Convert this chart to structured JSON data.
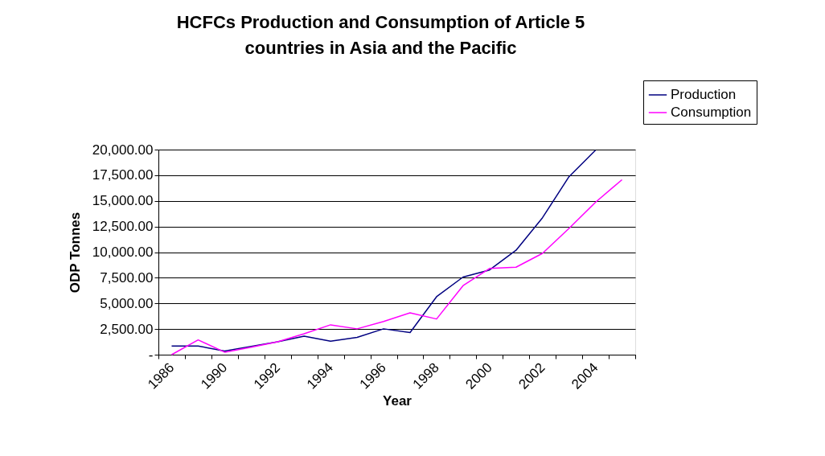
{
  "chart_data": {
    "type": "line",
    "title": "HCFCs Production and Consumption of Article 5 countries in Asia and the Pacific",
    "xlabel": "Year",
    "ylabel": "ODP Tonnes",
    "categories": [
      "1986",
      null,
      "1990",
      null,
      "1992",
      null,
      "1994",
      null,
      "1996",
      null,
      "1998",
      null,
      "2000",
      null,
      "2002",
      null,
      "2004",
      null
    ],
    "series": [
      {
        "name": "Production",
        "color": "#000080",
        "values": [
          840,
          840,
          360,
          800,
          1260,
          1800,
          1320,
          1680,
          2520,
          2160,
          5650,
          7570,
          8260,
          10180,
          13360,
          17360,
          19940,
          null
        ]
      },
      {
        "name": "Consumption",
        "color": "#ff00ff",
        "values": [
          0,
          1440,
          240,
          720,
          1260,
          2040,
          2910,
          2520,
          3240,
          4080,
          3480,
          6730,
          8410,
          8530,
          9880,
          12310,
          14860,
          17060
        ]
      }
    ],
    "ylim": [
      0,
      20000
    ],
    "yticks": [
      {
        "value": 0,
        "label": "-"
      },
      {
        "value": 2500,
        "label": "2,500.00"
      },
      {
        "value": 5000,
        "label": "5,000.00"
      },
      {
        "value": 7500,
        "label": "7,500.00"
      },
      {
        "value": 10000,
        "label": "10,000.00"
      },
      {
        "value": 12500,
        "label": "12,500.00"
      },
      {
        "value": 15000,
        "label": "15,000.00"
      },
      {
        "value": 17500,
        "label": "17,500.00"
      },
      {
        "value": 20000,
        "label": "20,000.00"
      }
    ],
    "grid": "y",
    "legend": "top right",
    "marker": "none",
    "line_style": "solid"
  }
}
